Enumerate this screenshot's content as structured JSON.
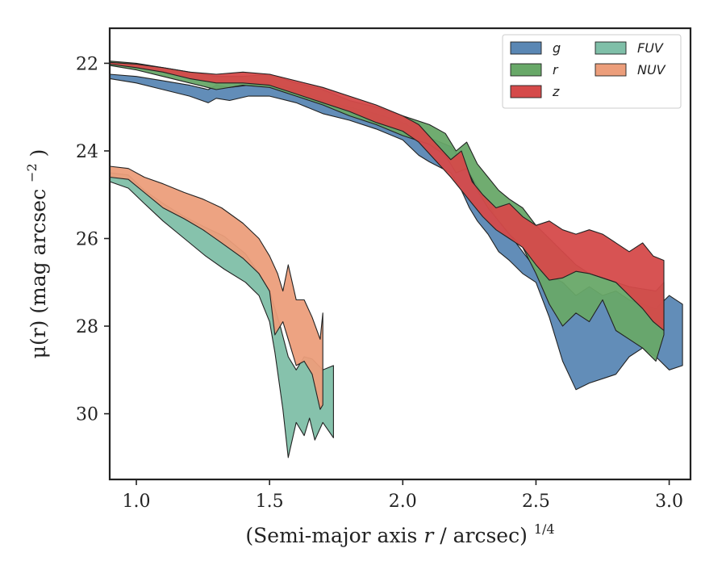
{
  "chart_data": {
    "type": "area",
    "xlabel": "(Semi-major axis r / arcsec)",
    "xlabel_var": "r",
    "xlabel_exp": "1/4",
    "ylabel": "μ(r) (mag arcsec",
    "ylabel_exp": "−2",
    "ylabel_close": ")",
    "xlim": [
      0.9,
      3.08
    ],
    "ylim": [
      31.5,
      21.2
    ],
    "y_inverted": true,
    "xticks": [
      1.0,
      1.5,
      2.0,
      2.5,
      3.0
    ],
    "xtick_labels": [
      "1.0",
      "1.5",
      "2.0",
      "2.5",
      "3.0"
    ],
    "yticks": [
      22,
      24,
      26,
      28,
      30
    ],
    "ytick_labels": [
      "22",
      "24",
      "26",
      "28",
      "30"
    ],
    "grid": false,
    "legend_position": "top-right",
    "legend_columns": 2,
    "series": [
      {
        "name": "FUV",
        "color": "#7fbfa8",
        "upper": [
          [
            0.9,
            24.5
          ],
          [
            0.97,
            24.55
          ],
          [
            1.03,
            24.9
          ],
          [
            1.1,
            25.2
          ],
          [
            1.18,
            25.5
          ],
          [
            1.26,
            25.75
          ],
          [
            1.33,
            25.95
          ],
          [
            1.41,
            26.35
          ],
          [
            1.46,
            26.8
          ],
          [
            1.5,
            27.2
          ],
          [
            1.54,
            28.0
          ],
          [
            1.57,
            28.7
          ],
          [
            1.6,
            29.0
          ],
          [
            1.63,
            28.7
          ],
          [
            1.66,
            28.75
          ],
          [
            1.7,
            29.0
          ],
          [
            1.74,
            28.9
          ]
        ],
        "lower": [
          [
            0.9,
            24.7
          ],
          [
            0.97,
            24.85
          ],
          [
            1.03,
            25.2
          ],
          [
            1.1,
            25.6
          ],
          [
            1.18,
            26.0
          ],
          [
            1.26,
            26.4
          ],
          [
            1.33,
            26.7
          ],
          [
            1.41,
            27.0
          ],
          [
            1.46,
            27.3
          ],
          [
            1.5,
            27.9
          ],
          [
            1.52,
            28.6
          ],
          [
            1.55,
            29.9
          ],
          [
            1.57,
            31.0
          ],
          [
            1.6,
            30.2
          ],
          [
            1.63,
            30.5
          ],
          [
            1.65,
            30.1
          ],
          [
            1.67,
            30.6
          ],
          [
            1.7,
            30.2
          ],
          [
            1.74,
            30.55
          ]
        ]
      },
      {
        "name": "NUV",
        "color": "#ec9e7b",
        "upper": [
          [
            0.9,
            24.35
          ],
          [
            0.97,
            24.4
          ],
          [
            1.03,
            24.6
          ],
          [
            1.1,
            24.75
          ],
          [
            1.18,
            24.95
          ],
          [
            1.25,
            25.1
          ],
          [
            1.32,
            25.3
          ],
          [
            1.4,
            25.65
          ],
          [
            1.46,
            26.0
          ],
          [
            1.5,
            26.4
          ],
          [
            1.53,
            26.8
          ],
          [
            1.55,
            27.2
          ],
          [
            1.57,
            26.6
          ],
          [
            1.6,
            27.4
          ],
          [
            1.63,
            27.4
          ],
          [
            1.66,
            27.8
          ],
          [
            1.69,
            28.3
          ],
          [
            1.7,
            27.7
          ]
        ],
        "lower": [
          [
            0.9,
            24.6
          ],
          [
            0.97,
            24.65
          ],
          [
            1.03,
            24.95
          ],
          [
            1.1,
            25.3
          ],
          [
            1.18,
            25.55
          ],
          [
            1.25,
            25.8
          ],
          [
            1.32,
            26.1
          ],
          [
            1.4,
            26.45
          ],
          [
            1.46,
            26.8
          ],
          [
            1.5,
            27.2
          ],
          [
            1.52,
            28.2
          ],
          [
            1.55,
            27.9
          ],
          [
            1.57,
            28.3
          ],
          [
            1.6,
            28.9
          ],
          [
            1.63,
            28.8
          ],
          [
            1.66,
            29.1
          ],
          [
            1.69,
            29.9
          ],
          [
            1.7,
            29.8
          ]
        ]
      },
      {
        "name": "g",
        "color": "#5a87b4",
        "upper": [
          [
            0.9,
            22.25
          ],
          [
            1.0,
            22.3
          ],
          [
            1.1,
            22.4
          ],
          [
            1.2,
            22.5
          ],
          [
            1.27,
            22.6
          ],
          [
            1.3,
            22.5
          ],
          [
            1.35,
            22.55
          ],
          [
            1.42,
            22.5
          ],
          [
            1.5,
            22.45
          ],
          [
            1.6,
            22.6
          ],
          [
            1.7,
            22.85
          ],
          [
            1.8,
            23.0
          ],
          [
            1.9,
            23.15
          ],
          [
            2.0,
            23.35
          ],
          [
            2.06,
            23.55
          ],
          [
            2.1,
            23.7
          ],
          [
            2.18,
            23.9
          ],
          [
            2.22,
            24.2
          ],
          [
            2.25,
            24.5
          ],
          [
            2.28,
            24.8
          ],
          [
            2.32,
            25.2
          ],
          [
            2.36,
            25.6
          ],
          [
            2.4,
            25.9
          ],
          [
            2.45,
            26.3
          ],
          [
            2.5,
            26.7
          ],
          [
            2.55,
            26.85
          ],
          [
            2.6,
            27.0
          ],
          [
            2.65,
            27.3
          ],
          [
            2.7,
            27.1
          ],
          [
            2.75,
            27.3
          ],
          [
            2.8,
            27.2
          ],
          [
            2.85,
            27.4
          ],
          [
            2.9,
            27.5
          ],
          [
            2.95,
            27.6
          ],
          [
            3.0,
            27.3
          ],
          [
            3.05,
            27.5
          ]
        ],
        "lower": [
          [
            0.9,
            22.35
          ],
          [
            1.0,
            22.45
          ],
          [
            1.1,
            22.6
          ],
          [
            1.2,
            22.75
          ],
          [
            1.27,
            22.9
          ],
          [
            1.3,
            22.8
          ],
          [
            1.35,
            22.85
          ],
          [
            1.42,
            22.75
          ],
          [
            1.5,
            22.75
          ],
          [
            1.6,
            22.9
          ],
          [
            1.7,
            23.15
          ],
          [
            1.8,
            23.3
          ],
          [
            1.9,
            23.5
          ],
          [
            2.0,
            23.75
          ],
          [
            2.06,
            24.1
          ],
          [
            2.1,
            24.25
          ],
          [
            2.18,
            24.5
          ],
          [
            2.22,
            24.9
          ],
          [
            2.25,
            25.3
          ],
          [
            2.28,
            25.6
          ],
          [
            2.32,
            25.9
          ],
          [
            2.36,
            26.3
          ],
          [
            2.4,
            26.5
          ],
          [
            2.45,
            26.8
          ],
          [
            2.5,
            27.0
          ],
          [
            2.55,
            27.8
          ],
          [
            2.6,
            28.8
          ],
          [
            2.65,
            29.45
          ],
          [
            2.7,
            29.3
          ],
          [
            2.75,
            29.2
          ],
          [
            2.8,
            29.1
          ],
          [
            2.85,
            28.7
          ],
          [
            2.9,
            28.5
          ],
          [
            2.95,
            28.7
          ],
          [
            3.0,
            29.0
          ],
          [
            3.05,
            28.9
          ]
        ]
      },
      {
        "name": "r",
        "color": "#68a868",
        "upper": [
          [
            0.9,
            21.95
          ],
          [
            1.0,
            22.0
          ],
          [
            1.1,
            22.1
          ],
          [
            1.2,
            22.2
          ],
          [
            1.3,
            22.3
          ],
          [
            1.4,
            22.3
          ],
          [
            1.5,
            22.25
          ],
          [
            1.6,
            22.45
          ],
          [
            1.7,
            22.6
          ],
          [
            1.8,
            22.85
          ],
          [
            1.9,
            23.0
          ],
          [
            2.0,
            23.2
          ],
          [
            2.1,
            23.4
          ],
          [
            2.16,
            23.6
          ],
          [
            2.2,
            24.0
          ],
          [
            2.24,
            23.8
          ],
          [
            2.28,
            24.3
          ],
          [
            2.32,
            24.6
          ],
          [
            2.36,
            24.9
          ],
          [
            2.4,
            25.1
          ],
          [
            2.45,
            25.3
          ],
          [
            2.5,
            25.7
          ],
          [
            2.55,
            26.0
          ],
          [
            2.6,
            26.3
          ],
          [
            2.65,
            26.6
          ],
          [
            2.7,
            26.8
          ],
          [
            2.75,
            26.9
          ],
          [
            2.8,
            27.0
          ],
          [
            2.85,
            27.1
          ],
          [
            2.9,
            27.15
          ],
          [
            2.95,
            27.2
          ],
          [
            2.98,
            27.0
          ]
        ],
        "lower": [
          [
            0.9,
            22.05
          ],
          [
            1.0,
            22.15
          ],
          [
            1.1,
            22.3
          ],
          [
            1.2,
            22.45
          ],
          [
            1.3,
            22.6
          ],
          [
            1.4,
            22.5
          ],
          [
            1.5,
            22.55
          ],
          [
            1.6,
            22.75
          ],
          [
            1.7,
            22.95
          ],
          [
            1.8,
            23.2
          ],
          [
            1.9,
            23.4
          ],
          [
            2.0,
            23.65
          ],
          [
            2.1,
            23.85
          ],
          [
            2.16,
            24.1
          ],
          [
            2.2,
            24.5
          ],
          [
            2.24,
            24.4
          ],
          [
            2.28,
            24.9
          ],
          [
            2.32,
            25.3
          ],
          [
            2.36,
            25.6
          ],
          [
            2.4,
            25.9
          ],
          [
            2.45,
            26.2
          ],
          [
            2.5,
            26.8
          ],
          [
            2.55,
            27.5
          ],
          [
            2.6,
            28.0
          ],
          [
            2.65,
            27.7
          ],
          [
            2.7,
            27.9
          ],
          [
            2.75,
            27.4
          ],
          [
            2.8,
            28.1
          ],
          [
            2.85,
            28.3
          ],
          [
            2.9,
            28.5
          ],
          [
            2.95,
            28.8
          ],
          [
            2.98,
            28.2
          ]
        ]
      },
      {
        "name": "z",
        "color": "#d54a4a",
        "upper": [
          [
            0.9,
            21.98
          ],
          [
            1.0,
            22.02
          ],
          [
            1.1,
            22.1
          ],
          [
            1.2,
            22.2
          ],
          [
            1.3,
            22.25
          ],
          [
            1.4,
            22.2
          ],
          [
            1.5,
            22.25
          ],
          [
            1.6,
            22.4
          ],
          [
            1.7,
            22.55
          ],
          [
            1.8,
            22.75
          ],
          [
            1.9,
            22.95
          ],
          [
            2.0,
            23.2
          ],
          [
            2.06,
            23.4
          ],
          [
            2.12,
            23.8
          ],
          [
            2.18,
            24.2
          ],
          [
            2.22,
            24.0
          ],
          [
            2.26,
            24.7
          ],
          [
            2.3,
            25.0
          ],
          [
            2.35,
            25.3
          ],
          [
            2.4,
            25.2
          ],
          [
            2.45,
            25.5
          ],
          [
            2.5,
            25.7
          ],
          [
            2.55,
            25.6
          ],
          [
            2.6,
            25.8
          ],
          [
            2.65,
            25.9
          ],
          [
            2.7,
            25.8
          ],
          [
            2.75,
            25.9
          ],
          [
            2.8,
            26.1
          ],
          [
            2.85,
            26.3
          ],
          [
            2.9,
            26.1
          ],
          [
            2.94,
            26.4
          ],
          [
            2.98,
            26.5
          ]
        ],
        "lower": [
          [
            0.9,
            22.02
          ],
          [
            1.0,
            22.1
          ],
          [
            1.1,
            22.2
          ],
          [
            1.2,
            22.35
          ],
          [
            1.3,
            22.45
          ],
          [
            1.4,
            22.45
          ],
          [
            1.5,
            22.5
          ],
          [
            1.6,
            22.7
          ],
          [
            1.7,
            22.9
          ],
          [
            1.8,
            23.1
          ],
          [
            1.9,
            23.35
          ],
          [
            2.0,
            23.55
          ],
          [
            2.06,
            23.8
          ],
          [
            2.12,
            24.2
          ],
          [
            2.18,
            24.6
          ],
          [
            2.22,
            24.9
          ],
          [
            2.26,
            25.2
          ],
          [
            2.3,
            25.5
          ],
          [
            2.35,
            25.8
          ],
          [
            2.4,
            26.0
          ],
          [
            2.45,
            26.2
          ],
          [
            2.5,
            26.6
          ],
          [
            2.55,
            26.95
          ],
          [
            2.6,
            26.9
          ],
          [
            2.65,
            26.75
          ],
          [
            2.7,
            26.8
          ],
          [
            2.75,
            26.9
          ],
          [
            2.8,
            27.0
          ],
          [
            2.85,
            27.3
          ],
          [
            2.9,
            27.6
          ],
          [
            2.94,
            27.9
          ],
          [
            2.98,
            28.1
          ]
        ]
      }
    ],
    "legend_entries": [
      {
        "name": "g",
        "color": "#5a87b4"
      },
      {
        "name": "r",
        "color": "#68a868"
      },
      {
        "name": "z",
        "color": "#d54a4a"
      },
      {
        "name": "FUV",
        "color": "#7fbfa8"
      },
      {
        "name": "NUV",
        "color": "#ec9e7b"
      }
    ]
  }
}
